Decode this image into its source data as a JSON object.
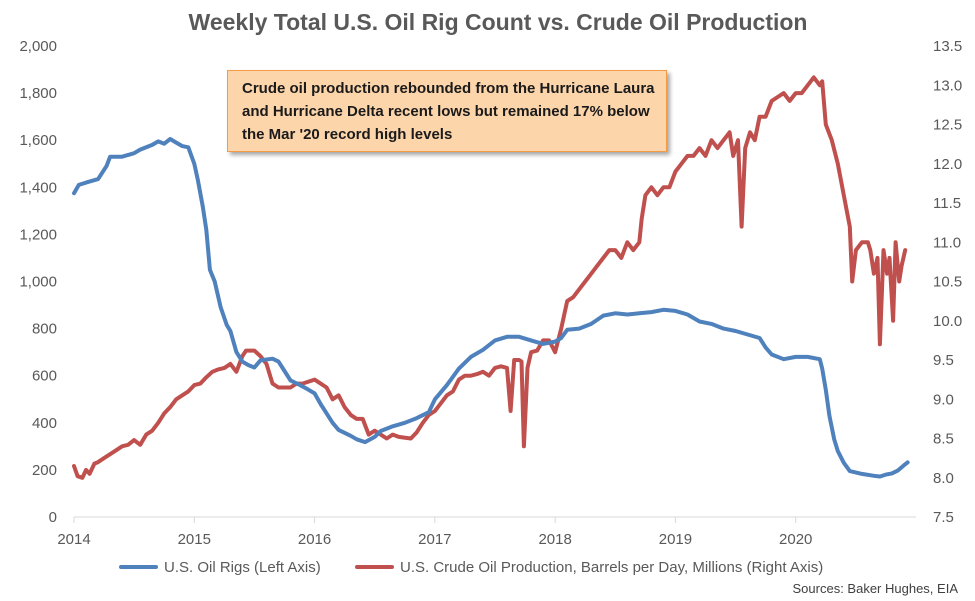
{
  "chart_data": {
    "type": "line",
    "title": "Weekly Total U.S. Oil Rig Count vs. Crude Oil Production",
    "x_ticks": [
      "2014",
      "2015",
      "2016",
      "2017",
      "2018",
      "2019",
      "2020"
    ],
    "x_range": [
      2014.0,
      2021.0
    ],
    "y_left": {
      "ticks": [
        "0",
        "200",
        "400",
        "600",
        "800",
        "1,000",
        "1,200",
        "1,400",
        "1,600",
        "1,800",
        "2,000"
      ],
      "range": [
        0,
        2000
      ]
    },
    "y_right": {
      "ticks": [
        "7.5",
        "8.0",
        "8.5",
        "9.0",
        "9.5",
        "10.0",
        "10.5",
        "11.0",
        "11.5",
        "12.0",
        "12.5",
        "13.0",
        "13.5"
      ],
      "range": [
        7.5,
        13.5
      ]
    },
    "legend_position": "bottom",
    "annotation": "Crude oil production rebounded from the Hurricane Laura and Hurricane Delta recent lows but remained 17% below the Mar '20 record high levels",
    "source": "Sources: Baker Hughes, EIA",
    "colors": {
      "rigs": "#4f81bd",
      "production": "#c0504d",
      "axis": "#d9d9d9",
      "text": "#595959"
    },
    "series": [
      {
        "name": "U.S. Oil Rigs (Left Axis)",
        "axis": "left",
        "color": "#4f81bd",
        "points": [
          [
            2014.0,
            1375
          ],
          [
            2014.04,
            1410
          ],
          [
            2014.1,
            1420
          ],
          [
            2014.2,
            1435
          ],
          [
            2014.27,
            1490
          ],
          [
            2014.3,
            1530
          ],
          [
            2014.4,
            1530
          ],
          [
            2014.5,
            1545
          ],
          [
            2014.55,
            1560
          ],
          [
            2014.65,
            1580
          ],
          [
            2014.7,
            1595
          ],
          [
            2014.75,
            1585
          ],
          [
            2014.8,
            1605
          ],
          [
            2014.85,
            1590
          ],
          [
            2014.9,
            1575
          ],
          [
            2014.95,
            1570
          ],
          [
            2015.0,
            1500
          ],
          [
            2015.03,
            1430
          ],
          [
            2015.07,
            1320
          ],
          [
            2015.1,
            1220
          ],
          [
            2015.13,
            1050
          ],
          [
            2015.17,
            1000
          ],
          [
            2015.22,
            890
          ],
          [
            2015.27,
            815
          ],
          [
            2015.3,
            790
          ],
          [
            2015.35,
            700
          ],
          [
            2015.4,
            660
          ],
          [
            2015.45,
            645
          ],
          [
            2015.5,
            635
          ],
          [
            2015.55,
            665
          ],
          [
            2015.65,
            672
          ],
          [
            2015.7,
            660
          ],
          [
            2015.75,
            620
          ],
          [
            2015.8,
            580
          ],
          [
            2015.88,
            560
          ],
          [
            2015.95,
            540
          ],
          [
            2016.0,
            525
          ],
          [
            2016.05,
            480
          ],
          [
            2016.1,
            440
          ],
          [
            2016.15,
            400
          ],
          [
            2016.2,
            370
          ],
          [
            2016.3,
            345
          ],
          [
            2016.35,
            330
          ],
          [
            2016.42,
            318
          ],
          [
            2016.5,
            340
          ],
          [
            2016.55,
            365
          ],
          [
            2016.65,
            385
          ],
          [
            2016.75,
            400
          ],
          [
            2016.85,
            420
          ],
          [
            2016.95,
            445
          ],
          [
            2017.0,
            500
          ],
          [
            2017.1,
            560
          ],
          [
            2017.2,
            630
          ],
          [
            2017.3,
            680
          ],
          [
            2017.4,
            710
          ],
          [
            2017.5,
            750
          ],
          [
            2017.6,
            765
          ],
          [
            2017.7,
            765
          ],
          [
            2017.8,
            750
          ],
          [
            2017.9,
            735
          ],
          [
            2018.0,
            745
          ],
          [
            2018.05,
            760
          ],
          [
            2018.1,
            795
          ],
          [
            2018.2,
            800
          ],
          [
            2018.3,
            820
          ],
          [
            2018.4,
            855
          ],
          [
            2018.5,
            865
          ],
          [
            2018.6,
            860
          ],
          [
            2018.7,
            865
          ],
          [
            2018.8,
            870
          ],
          [
            2018.9,
            880
          ],
          [
            2019.0,
            875
          ],
          [
            2019.1,
            860
          ],
          [
            2019.2,
            830
          ],
          [
            2019.3,
            820
          ],
          [
            2019.4,
            800
          ],
          [
            2019.5,
            790
          ],
          [
            2019.6,
            775
          ],
          [
            2019.7,
            760
          ],
          [
            2019.75,
            720
          ],
          [
            2019.8,
            690
          ],
          [
            2019.9,
            670
          ],
          [
            2020.0,
            680
          ],
          [
            2020.1,
            680
          ],
          [
            2020.2,
            670
          ],
          [
            2020.22,
            630
          ],
          [
            2020.25,
            540
          ],
          [
            2020.28,
            430
          ],
          [
            2020.32,
            330
          ],
          [
            2020.35,
            280
          ],
          [
            2020.4,
            230
          ],
          [
            2020.45,
            195
          ],
          [
            2020.55,
            183
          ],
          [
            2020.65,
            175
          ],
          [
            2020.7,
            172
          ],
          [
            2020.75,
            180
          ],
          [
            2020.8,
            185
          ],
          [
            2020.85,
            198
          ],
          [
            2020.9,
            220
          ],
          [
            2020.93,
            232
          ]
        ]
      },
      {
        "name": "U.S. Crude Oil Production, Barrels per Day, Millions (Right Axis)",
        "axis": "right",
        "color": "#c0504d",
        "points": [
          [
            2014.0,
            8.15
          ],
          [
            2014.03,
            8.02
          ],
          [
            2014.07,
            8.0
          ],
          [
            2014.1,
            8.1
          ],
          [
            2014.13,
            8.05
          ],
          [
            2014.17,
            8.18
          ],
          [
            2014.2,
            8.2
          ],
          [
            2014.25,
            8.25
          ],
          [
            2014.3,
            8.3
          ],
          [
            2014.35,
            8.35
          ],
          [
            2014.4,
            8.4
          ],
          [
            2014.45,
            8.42
          ],
          [
            2014.5,
            8.48
          ],
          [
            2014.55,
            8.42
          ],
          [
            2014.6,
            8.55
          ],
          [
            2014.65,
            8.6
          ],
          [
            2014.7,
            8.7
          ],
          [
            2014.75,
            8.82
          ],
          [
            2014.8,
            8.9
          ],
          [
            2014.85,
            9.0
          ],
          [
            2014.9,
            9.05
          ],
          [
            2014.95,
            9.1
          ],
          [
            2015.0,
            9.18
          ],
          [
            2015.05,
            9.2
          ],
          [
            2015.1,
            9.28
          ],
          [
            2015.15,
            9.35
          ],
          [
            2015.2,
            9.38
          ],
          [
            2015.25,
            9.4
          ],
          [
            2015.3,
            9.45
          ],
          [
            2015.35,
            9.35
          ],
          [
            2015.4,
            9.55
          ],
          [
            2015.43,
            9.62
          ],
          [
            2015.5,
            9.62
          ],
          [
            2015.55,
            9.55
          ],
          [
            2015.6,
            9.45
          ],
          [
            2015.65,
            9.2
          ],
          [
            2015.7,
            9.15
          ],
          [
            2015.8,
            9.15
          ],
          [
            2015.85,
            9.2
          ],
          [
            2015.9,
            9.2
          ],
          [
            2016.0,
            9.25
          ],
          [
            2016.05,
            9.2
          ],
          [
            2016.1,
            9.15
          ],
          [
            2016.15,
            9.0
          ],
          [
            2016.2,
            9.05
          ],
          [
            2016.25,
            8.9
          ],
          [
            2016.3,
            8.8
          ],
          [
            2016.35,
            8.75
          ],
          [
            2016.4,
            8.75
          ],
          [
            2016.45,
            8.55
          ],
          [
            2016.5,
            8.6
          ],
          [
            2016.55,
            8.55
          ],
          [
            2016.6,
            8.5
          ],
          [
            2016.65,
            8.55
          ],
          [
            2016.7,
            8.52
          ],
          [
            2016.8,
            8.5
          ],
          [
            2016.85,
            8.58
          ],
          [
            2016.9,
            8.7
          ],
          [
            2016.95,
            8.8
          ],
          [
            2017.0,
            8.85
          ],
          [
            2017.05,
            8.95
          ],
          [
            2017.1,
            9.05
          ],
          [
            2017.15,
            9.1
          ],
          [
            2017.2,
            9.25
          ],
          [
            2017.25,
            9.3
          ],
          [
            2017.3,
            9.3
          ],
          [
            2017.35,
            9.32
          ],
          [
            2017.4,
            9.35
          ],
          [
            2017.45,
            9.3
          ],
          [
            2017.5,
            9.4
          ],
          [
            2017.55,
            9.42
          ],
          [
            2017.6,
            9.4
          ],
          [
            2017.63,
            8.85
          ],
          [
            2017.66,
            9.5
          ],
          [
            2017.7,
            9.5
          ],
          [
            2017.72,
            9.48
          ],
          [
            2017.74,
            8.4
          ],
          [
            2017.77,
            9.4
          ],
          [
            2017.8,
            9.6
          ],
          [
            2017.85,
            9.62
          ],
          [
            2017.9,
            9.75
          ],
          [
            2017.95,
            9.75
          ],
          [
            2018.0,
            9.6
          ],
          [
            2018.05,
            9.9
          ],
          [
            2018.1,
            10.25
          ],
          [
            2018.15,
            10.3
          ],
          [
            2018.2,
            10.4
          ],
          [
            2018.25,
            10.5
          ],
          [
            2018.3,
            10.6
          ],
          [
            2018.35,
            10.7
          ],
          [
            2018.4,
            10.8
          ],
          [
            2018.45,
            10.9
          ],
          [
            2018.5,
            10.9
          ],
          [
            2018.55,
            10.8
          ],
          [
            2018.6,
            11.0
          ],
          [
            2018.65,
            10.9
          ],
          [
            2018.7,
            11.0
          ],
          [
            2018.72,
            11.3
          ],
          [
            2018.75,
            11.6
          ],
          [
            2018.8,
            11.7
          ],
          [
            2018.85,
            11.6
          ],
          [
            2018.9,
            11.7
          ],
          [
            2018.95,
            11.7
          ],
          [
            2019.0,
            11.9
          ],
          [
            2019.05,
            12.0
          ],
          [
            2019.1,
            12.1
          ],
          [
            2019.15,
            12.1
          ],
          [
            2019.2,
            12.2
          ],
          [
            2019.25,
            12.1
          ],
          [
            2019.3,
            12.3
          ],
          [
            2019.35,
            12.2
          ],
          [
            2019.4,
            12.3
          ],
          [
            2019.45,
            12.4
          ],
          [
            2019.48,
            12.1
          ],
          [
            2019.52,
            12.3
          ],
          [
            2019.55,
            11.2
          ],
          [
            2019.58,
            12.2
          ],
          [
            2019.62,
            12.4
          ],
          [
            2019.66,
            12.3
          ],
          [
            2019.7,
            12.6
          ],
          [
            2019.75,
            12.6
          ],
          [
            2019.8,
            12.8
          ],
          [
            2019.85,
            12.85
          ],
          [
            2019.9,
            12.9
          ],
          [
            2019.95,
            12.8
          ],
          [
            2020.0,
            12.9
          ],
          [
            2020.05,
            12.9
          ],
          [
            2020.1,
            13.0
          ],
          [
            2020.15,
            13.1
          ],
          [
            2020.2,
            13.0
          ],
          [
            2020.22,
            13.05
          ],
          [
            2020.25,
            12.5
          ],
          [
            2020.3,
            12.3
          ],
          [
            2020.35,
            12.0
          ],
          [
            2020.4,
            11.6
          ],
          [
            2020.45,
            11.2
          ],
          [
            2020.47,
            10.5
          ],
          [
            2020.5,
            10.9
          ],
          [
            2020.55,
            11.0
          ],
          [
            2020.6,
            11.0
          ],
          [
            2020.62,
            10.9
          ],
          [
            2020.65,
            10.6
          ],
          [
            2020.68,
            10.8
          ],
          [
            2020.7,
            9.7
          ],
          [
            2020.73,
            10.9
          ],
          [
            2020.76,
            10.6
          ],
          [
            2020.78,
            10.8
          ],
          [
            2020.81,
            10.0
          ],
          [
            2020.83,
            11.0
          ],
          [
            2020.86,
            10.5
          ],
          [
            2020.88,
            10.7
          ],
          [
            2020.91,
            10.9
          ]
        ]
      }
    ]
  }
}
